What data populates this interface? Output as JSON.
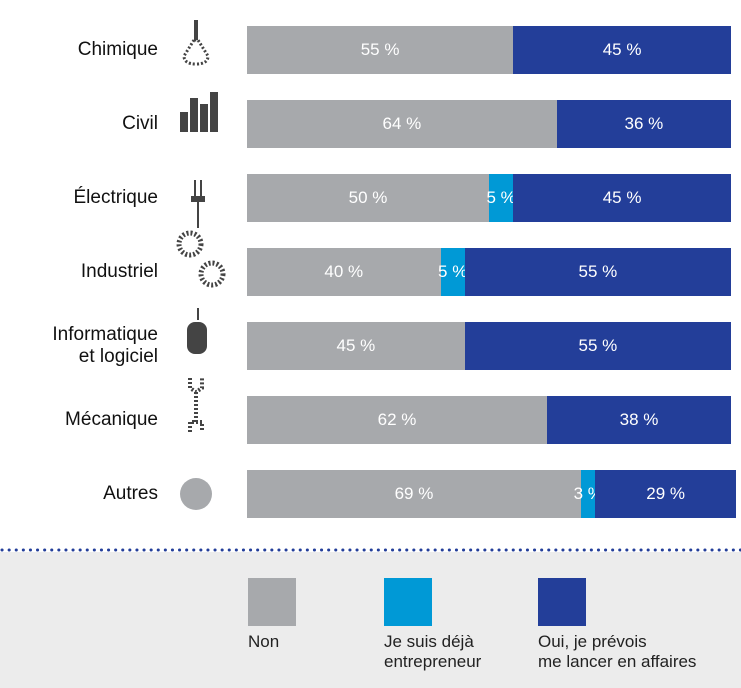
{
  "chart_data": {
    "type": "bar",
    "orientation": "horizontal",
    "stacked": true,
    "categories": [
      "Chimique",
      "Civil",
      "Électrique",
      "Industriel",
      "Informatique\net logiciel",
      "Mécanique",
      "Autres"
    ],
    "xlim": [
      0,
      100
    ],
    "series": [
      {
        "name": "Non",
        "color": "#a7a9ac",
        "values": [
          55,
          64,
          50,
          40,
          45,
          62,
          69
        ],
        "value_labels": [
          "55 %",
          "64 %",
          "50 %",
          "40 %",
          "45 %",
          "62 %",
          "69 %"
        ]
      },
      {
        "name": "Je suis déjà\nentrepreneur",
        "color": "#0099d6",
        "values": [
          null,
          null,
          5,
          5,
          null,
          null,
          3
        ],
        "value_labels": [
          null,
          null,
          "5 %",
          "5 %",
          null,
          null,
          "3 %"
        ]
      },
      {
        "name": "Oui, je prévois\nme lancer en affaires",
        "color": "#233e99",
        "values": [
          45,
          36,
          45,
          55,
          55,
          38,
          29
        ],
        "value_labels": [
          "45 %",
          "36 %",
          "45 %",
          "55 %",
          "55 %",
          "38 %",
          "29 %"
        ]
      }
    ]
  }
}
